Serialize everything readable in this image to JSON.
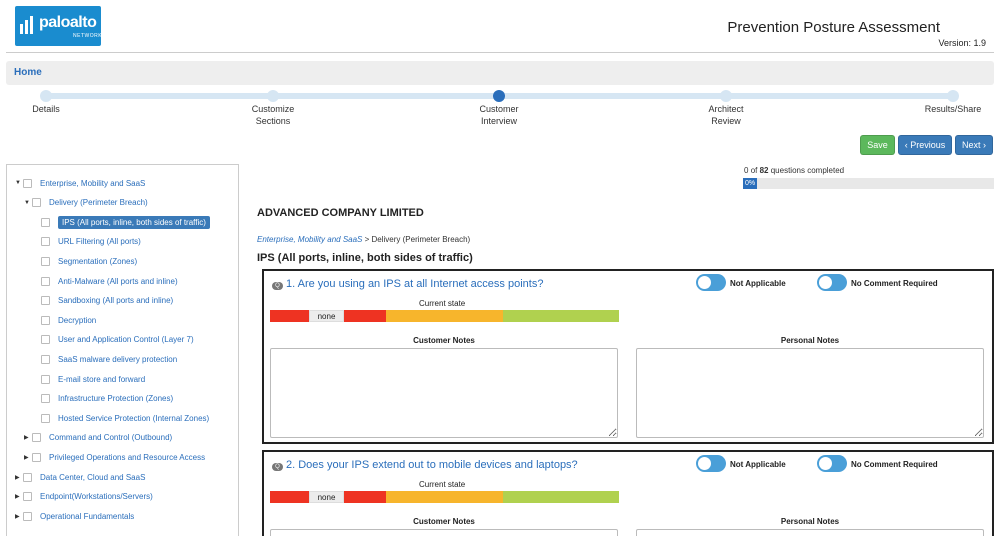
{
  "header": {
    "logo_text": "paloalto",
    "logo_sub": "NETWORKS",
    "title": "Prevention Posture Assessment",
    "version": "Version: 1.9"
  },
  "breadcrumb": {
    "home": "Home"
  },
  "stepper": {
    "steps": [
      {
        "label": "Details"
      },
      {
        "label": "Customize\nSections"
      },
      {
        "label": "Customer\nInterview"
      },
      {
        "label": "Architect\nReview"
      },
      {
        "label": "Results/Share"
      }
    ],
    "active_index": 2
  },
  "buttons": {
    "save": "Save",
    "previous": "‹ Previous",
    "next": "Next ›"
  },
  "progress": {
    "completed": "0",
    "total": "82",
    "suffix": "questions completed",
    "percent_label": "0%",
    "of_label": "of"
  },
  "tree": {
    "items": [
      {
        "label": "Enterprise, Mobility and SaaS",
        "caret": "▼"
      },
      {
        "label": "Delivery (Perimeter Breach)",
        "caret": "▼"
      },
      {
        "label": "IPS (All ports, inline, both sides of traffic)",
        "caret": ""
      },
      {
        "label": "URL Filtering (All ports)",
        "caret": ""
      },
      {
        "label": "Segmentation (Zones)",
        "caret": ""
      },
      {
        "label": "Anti-Malware (All ports and inline)",
        "caret": ""
      },
      {
        "label": "Sandboxing (All ports and inline)",
        "caret": ""
      },
      {
        "label": "Decryption",
        "caret": ""
      },
      {
        "label": "User and Application Control (Layer 7)",
        "caret": ""
      },
      {
        "label": "SaaS malware delivery protection",
        "caret": ""
      },
      {
        "label": "E-mail store and forward",
        "caret": ""
      },
      {
        "label": "Infrastructure Protection (Zones)",
        "caret": ""
      },
      {
        "label": "Hosted Service Protection (Internal Zones)",
        "caret": ""
      },
      {
        "label": "Command and Control (Outbound)",
        "caret": "▶"
      },
      {
        "label": "Privileged Operations and Resource Access",
        "caret": "▶"
      },
      {
        "label": "Data Center, Cloud and SaaS",
        "caret": "▶"
      },
      {
        "label": "Endpoint(Workstations/Servers)",
        "caret": "▶"
      },
      {
        "label": "Operational Fundamentals",
        "caret": "▶"
      }
    ]
  },
  "main": {
    "company": "ADVANCED COMPANY LIMITED",
    "path_link": "Enterprise, Mobility and SaaS",
    "path_rest": " > Delivery (Perimeter Breach)",
    "section_title": "IPS (All ports, inline, both sides of traffic)",
    "questions": [
      {
        "title": "1. Are you using an IPS at all Internet access points?"
      },
      {
        "title": "2. Does your IPS extend out to mobile devices and laptops?"
      }
    ],
    "not_applicable": "Not Applicable",
    "no_comment": "No Comment Required",
    "current_state": "Current state",
    "state_value": "none",
    "customer_notes": "Customer Notes",
    "personal_notes": "Personal Notes",
    "badge": "Q"
  },
  "colors": {
    "accent": "#2a6ebb",
    "save": "#5cb85c",
    "state_red": "#ee3322",
    "state_orange": "#f7b52c",
    "state_green": "#b0d14f"
  }
}
